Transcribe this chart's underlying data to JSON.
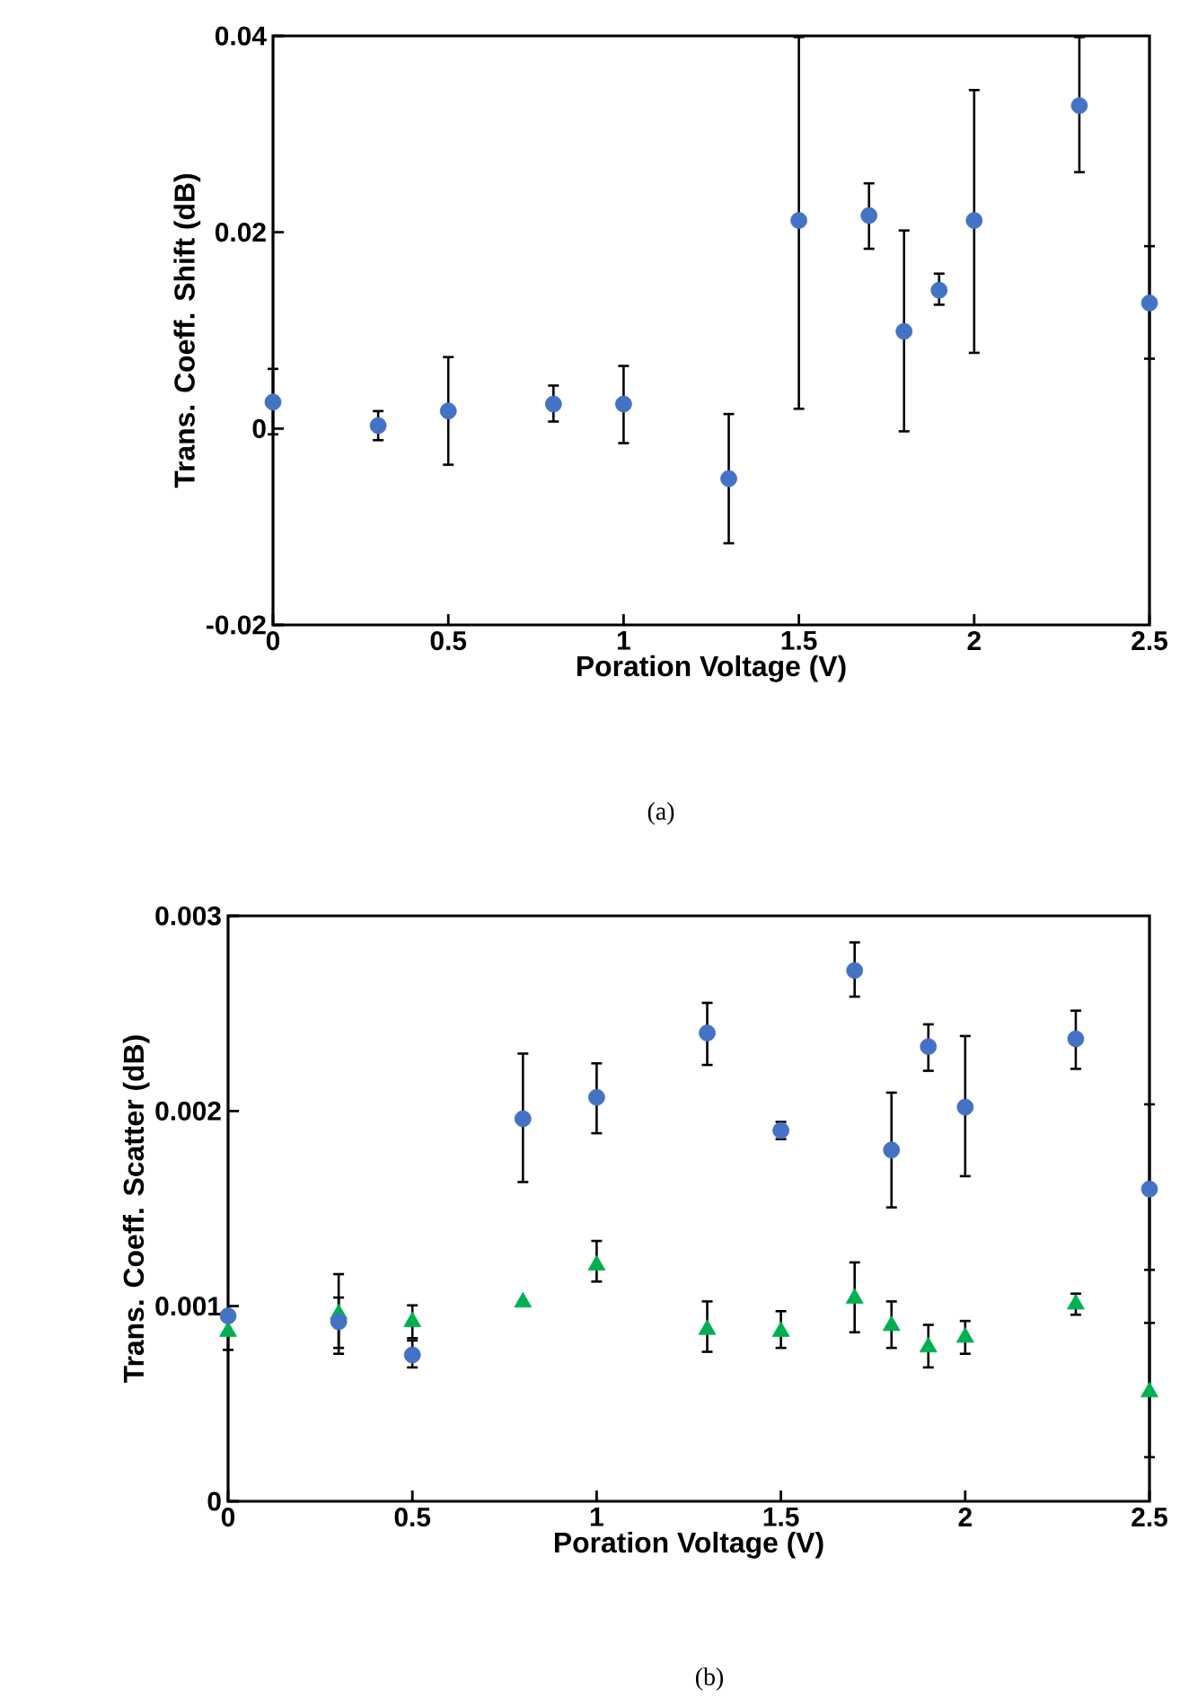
{
  "chart_data": [
    {
      "type": "scatter",
      "xlabel": "Poration Voltage (V)",
      "ylabel": "Trans. Coeff. Shift (dB)",
      "annotations": [
        "(a)"
      ],
      "xlim": [
        0,
        2.5
      ],
      "xticks": [
        0,
        0.5,
        1,
        1.5,
        2,
        2.5
      ],
      "ylim": [
        -0.02,
        0.04
      ],
      "yticks": [
        -0.02,
        0,
        0.02,
        0.04
      ],
      "grid": false,
      "series": [
        {
          "color": "#4472c4",
          "marker": "circle",
          "x": [
            0,
            0.3,
            0.5,
            0.8,
            1,
            1.3,
            1.5,
            1.7,
            1.8,
            1.9,
            2,
            2.3,
            2.5
          ],
          "values": [
            0.0027,
            0.0003,
            0.0018,
            0.0025,
            0.0025,
            -0.0051,
            0.0212,
            0.0217,
            0.0099,
            0.0141,
            0.0212,
            0.0329,
            0.0128
          ],
          "errors": [
            [
              -0.0007,
              0.0062
            ],
            [
              -0.0013,
              0.0019
            ],
            [
              -0.0038,
              0.0074
            ],
            [
              0.0006,
              0.0045
            ],
            [
              -0.0016,
              0.0065
            ],
            [
              -0.0118,
              0.0016
            ],
            [
              0.0019,
              0.04
            ],
            [
              0.0182,
              0.0251
            ],
            [
              -0.0004,
              0.0203
            ],
            [
              0.0125,
              0.0159
            ],
            [
              0.0076,
              0.0346
            ],
            [
              0.026,
              0.04
            ],
            [
              0.007,
              0.0187
            ]
          ]
        }
      ]
    },
    {
      "type": "scatter",
      "xlabel": "Poration Voltage (V)",
      "ylabel": "Trans. Coeff. Scatter (dB)",
      "annotations": [
        "(b)"
      ],
      "xlim": [
        0,
        2.5
      ],
      "xticks": [
        0,
        0.5,
        1,
        1.5,
        2,
        2.5
      ],
      "ylim": [
        0,
        0.003
      ],
      "yticks": [
        0,
        0.001,
        0.002,
        0.003
      ],
      "grid": false,
      "series": [
        {
          "color": "#00b050",
          "marker": "triangle",
          "x": [
            0,
            0.3,
            0.5,
            0.8,
            1,
            1.3,
            1.5,
            1.7,
            1.8,
            1.9,
            2,
            2.3,
            2.5
          ],
          "values": [
            0.00087,
            0.00096,
            0.00092,
            0.00102,
            0.00121,
            0.00088,
            0.00087,
            0.00104,
            0.0009,
            0.00079,
            0.00084,
            0.00101,
            0.00056
          ],
          "errors": [
            [
              0.00077,
              0.00097
            ],
            [
              0.00078,
              0.00105
            ],
            [
              0.00083,
              0.00101
            ],
            null,
            [
              0.00112,
              0.00134
            ],
            [
              0.00076,
              0.00103
            ],
            [
              0.00078,
              0.00098
            ],
            [
              0.00086,
              0.00123
            ],
            [
              0.00078,
              0.00103
            ],
            [
              0.00068,
              0.00091
            ],
            [
              0.00075,
              0.00093
            ],
            [
              0.00095,
              0.00107
            ],
            [
              0.00022,
              0.00092
            ]
          ]
        },
        {
          "color": "#4472c4",
          "marker": "circle",
          "x": [
            0,
            0.3,
            0.5,
            0.8,
            1,
            1.3,
            1.5,
            1.7,
            1.8,
            1.9,
            2,
            2.3,
            2.5
          ],
          "values": [
            0.00095,
            0.00092,
            0.00075,
            0.00196,
            0.00207,
            0.0024,
            0.0019,
            0.00272,
            0.0018,
            0.00233,
            0.00202,
            0.00237,
            0.0016
          ],
          "errors": [
            null,
            [
              0.00075,
              0.00117
            ],
            [
              0.00068,
              0.00083
            ],
            [
              0.00163,
              0.0023
            ],
            [
              0.00188,
              0.00225
            ],
            [
              0.00223,
              0.00256
            ],
            [
              0.00185,
              0.00195
            ],
            [
              0.00258,
              0.00287
            ],
            [
              0.0015,
              0.0021
            ],
            [
              0.0022,
              0.00245
            ],
            [
              0.00166,
              0.00239
            ],
            [
              0.00221,
              0.00252
            ],
            [
              0.00118,
              0.00204
            ]
          ]
        }
      ]
    }
  ]
}
